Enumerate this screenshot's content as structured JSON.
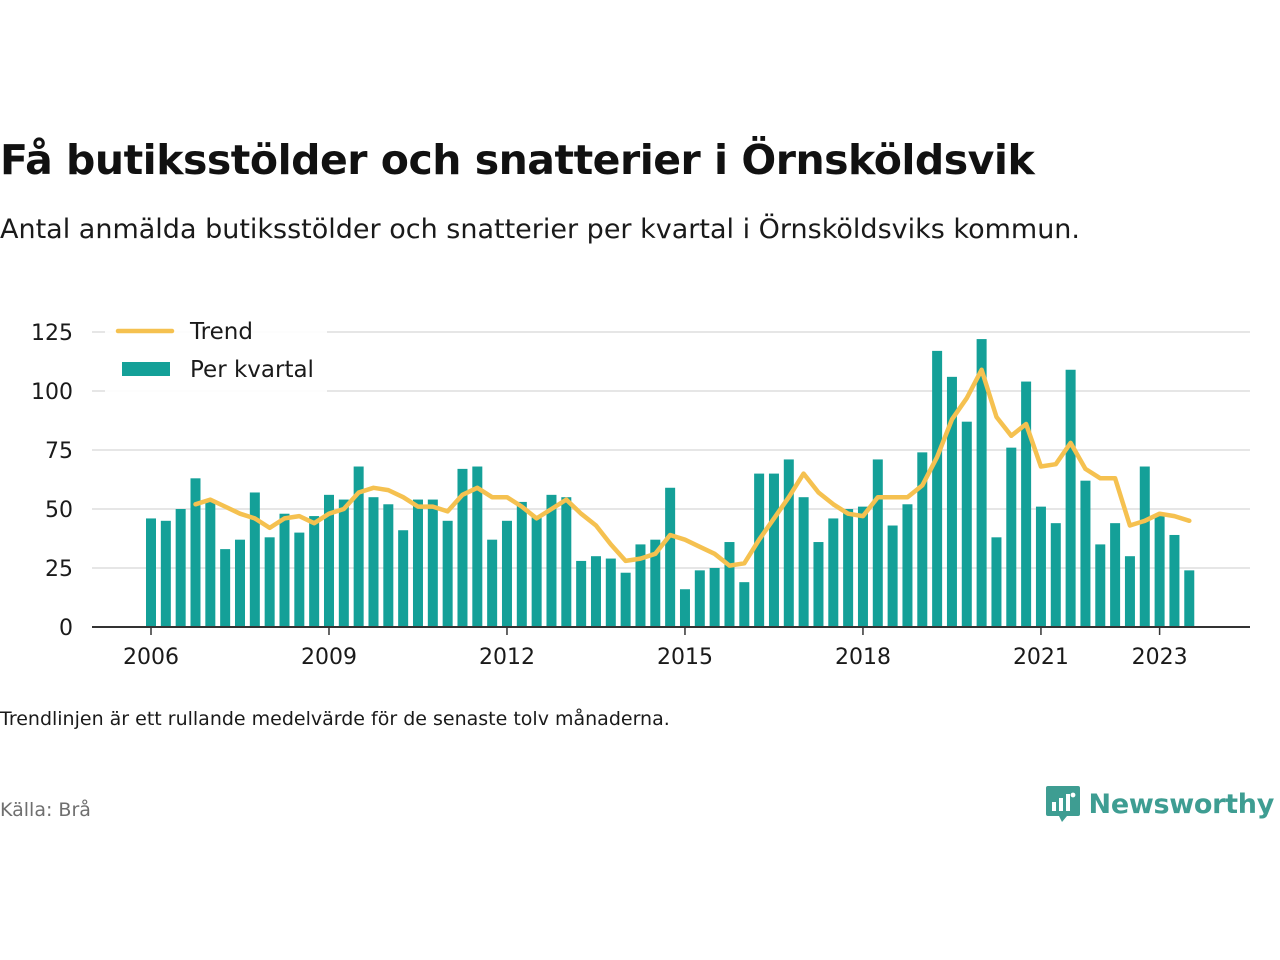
{
  "header": {
    "title": "Få butiksstölder och snatterier i Örnsköldsvik",
    "subtitle": "Antal anmälda butiksstölder och snatterier per kvartal i Örnsköldsviks kommun."
  },
  "footer": {
    "note": "Trendlinjen är ett rullande medelvärde för de senaste tolv månaderna.",
    "source": "Källa: Brå",
    "brand": "Newsworthy",
    "brand_icon": "newsworthy-logo-icon"
  },
  "colors": {
    "bars": "#14a098",
    "trend": "#f5c150",
    "grid": "#dddddd",
    "axis": "#333333",
    "brand": "#3e9d92"
  },
  "chart_data": {
    "type": "bar",
    "title": "",
    "xlabel": "",
    "ylabel": "",
    "ylim": [
      0,
      125
    ],
    "yticks": [
      0,
      25,
      50,
      75,
      100,
      125
    ],
    "xtick_labels": [
      "2006",
      "2009",
      "2012",
      "2015",
      "2018",
      "2021",
      "2023"
    ],
    "grid": true,
    "legend": {
      "placement": "top-left",
      "entries": [
        "Trend",
        "Per kvartal"
      ]
    },
    "x": [
      "2006Q1",
      "2006Q2",
      "2006Q3",
      "2006Q4",
      "2007Q1",
      "2007Q2",
      "2007Q3",
      "2007Q4",
      "2008Q1",
      "2008Q2",
      "2008Q3",
      "2008Q4",
      "2009Q1",
      "2009Q2",
      "2009Q3",
      "2009Q4",
      "2010Q1",
      "2010Q2",
      "2010Q3",
      "2010Q4",
      "2011Q1",
      "2011Q2",
      "2011Q3",
      "2011Q4",
      "2012Q1",
      "2012Q2",
      "2012Q3",
      "2012Q4",
      "2013Q1",
      "2013Q2",
      "2013Q3",
      "2013Q4",
      "2014Q1",
      "2014Q2",
      "2014Q3",
      "2014Q4",
      "2015Q1",
      "2015Q2",
      "2015Q3",
      "2015Q4",
      "2016Q1",
      "2016Q2",
      "2016Q3",
      "2016Q4",
      "2017Q1",
      "2017Q2",
      "2017Q3",
      "2017Q4",
      "2018Q1",
      "2018Q2",
      "2018Q3",
      "2018Q4",
      "2019Q1",
      "2019Q2",
      "2019Q3",
      "2019Q4",
      "2020Q1",
      "2020Q2",
      "2020Q3",
      "2020Q4",
      "2021Q1",
      "2021Q2",
      "2021Q3",
      "2021Q4",
      "2022Q1",
      "2022Q2",
      "2022Q3",
      "2022Q4",
      "2023Q1",
      "2023Q2",
      "2023Q3"
    ],
    "series": [
      {
        "name": "Per kvartal",
        "type": "bar",
        "values": [
          46,
          45,
          50,
          63,
          53,
          33,
          37,
          57,
          38,
          48,
          40,
          47,
          56,
          54,
          68,
          55,
          52,
          41,
          54,
          54,
          45,
          67,
          68,
          37,
          45,
          53,
          47,
          56,
          55,
          28,
          30,
          29,
          23,
          35,
          37,
          59,
          16,
          24,
          25,
          36,
          19,
          65,
          65,
          71,
          55,
          36,
          46,
          50,
          51,
          71,
          43,
          52,
          74,
          117,
          106,
          87,
          122,
          38,
          76,
          104,
          51,
          44,
          109,
          62,
          35,
          44,
          30,
          68,
          47,
          39,
          24
        ]
      },
      {
        "name": "Trend",
        "type": "line",
        "values": [
          null,
          null,
          null,
          52,
          54,
          51,
          48,
          46,
          42,
          46,
          47,
          44,
          48,
          50,
          57,
          59,
          58,
          55,
          51,
          51,
          49,
          56,
          59,
          55,
          55,
          51,
          46,
          50,
          54,
          48,
          43,
          35,
          28,
          29,
          31,
          39,
          37,
          34,
          31,
          26,
          27,
          37,
          46,
          55,
          65,
          57,
          52,
          48,
          47,
          55,
          55,
          55,
          60,
          72,
          88,
          97,
          109,
          89,
          81,
          86,
          68,
          69,
          78,
          67,
          63,
          63,
          43,
          45,
          48,
          47,
          45
        ]
      }
    ]
  }
}
